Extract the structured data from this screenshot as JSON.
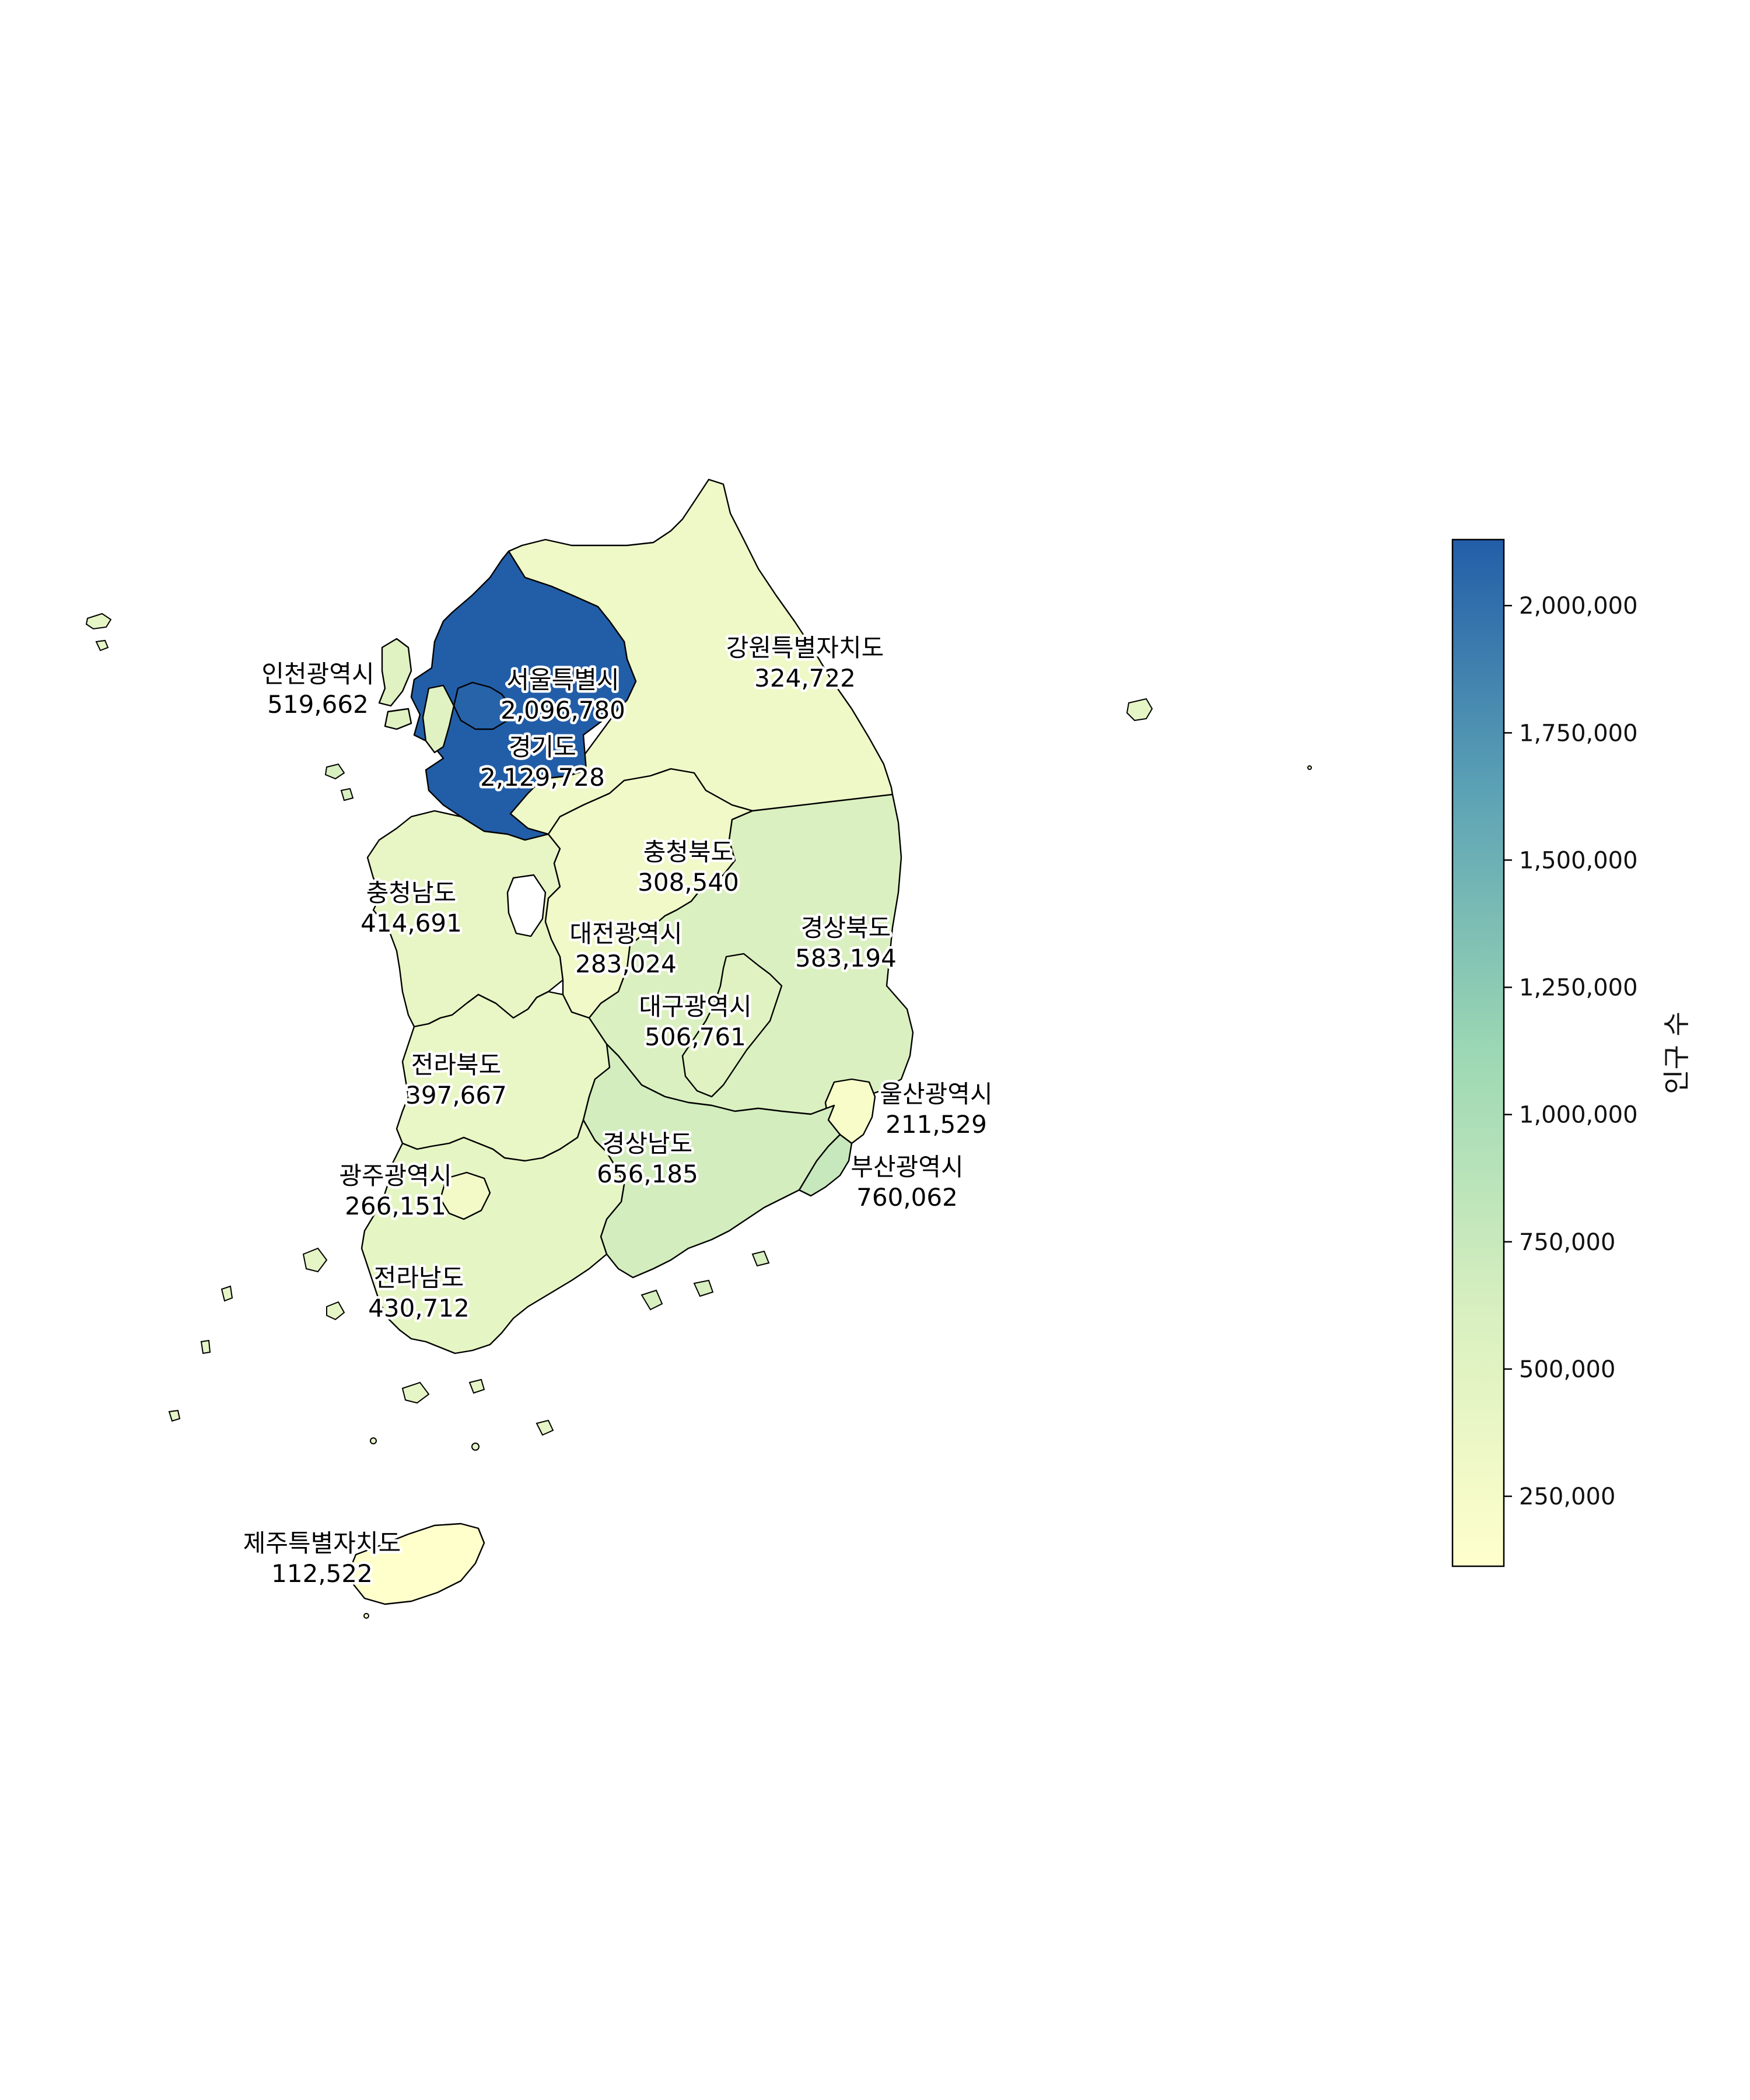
{
  "map": {
    "legend_title": "인구 수",
    "color_scale": {
      "min": 112522,
      "max": 2129728,
      "stops": [
        "#ffffcc",
        "#d8efbf",
        "#9cd8b4",
        "#5da3b5",
        "#225ea8"
      ]
    },
    "colorbar_ticks": [
      {
        "value": 250000,
        "label": "250,000"
      },
      {
        "value": 500000,
        "label": "500,000"
      },
      {
        "value": 750000,
        "label": "750,000"
      },
      {
        "value": 1000000,
        "label": "1,000,000"
      },
      {
        "value": 1250000,
        "label": "1,250,000"
      },
      {
        "value": 1500000,
        "label": "1,500,000"
      },
      {
        "value": 1750000,
        "label": "1,750,000"
      },
      {
        "value": 2000000,
        "label": "2,000,000"
      }
    ],
    "regions": [
      {
        "key": "gangwon",
        "name": "강원특별자치도",
        "value": 324722,
        "value_label": "324,722"
      },
      {
        "key": "incheon",
        "name": "인천광역시",
        "value": 519662,
        "value_label": "519,662"
      },
      {
        "key": "seoul",
        "name": "서울특별시",
        "value": 2096780,
        "value_label": "2,096,780"
      },
      {
        "key": "gyeonggi",
        "name": "경기도",
        "value": 2129728,
        "value_label": "2,129,728"
      },
      {
        "key": "chungbuk",
        "name": "충청북도",
        "value": 308540,
        "value_label": "308,540"
      },
      {
        "key": "chungnam",
        "name": "충청남도",
        "value": 414691,
        "value_label": "414,691"
      },
      {
        "key": "daejeon",
        "name": "대전광역시",
        "value": 283024,
        "value_label": "283,024"
      },
      {
        "key": "gyeongbuk",
        "name": "경상북도",
        "value": 583194,
        "value_label": "583,194"
      },
      {
        "key": "daegu",
        "name": "대구광역시",
        "value": 506761,
        "value_label": "506,761"
      },
      {
        "key": "jeonbuk",
        "name": "전라북도",
        "value": 397667,
        "value_label": "397,667"
      },
      {
        "key": "ulsan",
        "name": "울산광역시",
        "value": 211529,
        "value_label": "211,529"
      },
      {
        "key": "gyeongnam",
        "name": "경상남도",
        "value": 656185,
        "value_label": "656,185"
      },
      {
        "key": "busan",
        "name": "부산광역시",
        "value": 760062,
        "value_label": "760,062"
      },
      {
        "key": "gwangju",
        "name": "광주광역시",
        "value": 266151,
        "value_label": "266,151"
      },
      {
        "key": "jeonnam",
        "name": "전라남도",
        "value": 430712,
        "value_label": "430,712"
      },
      {
        "key": "jeju",
        "name": "제주특별자치도",
        "value": 112522,
        "value_label": "112,522"
      }
    ]
  }
}
